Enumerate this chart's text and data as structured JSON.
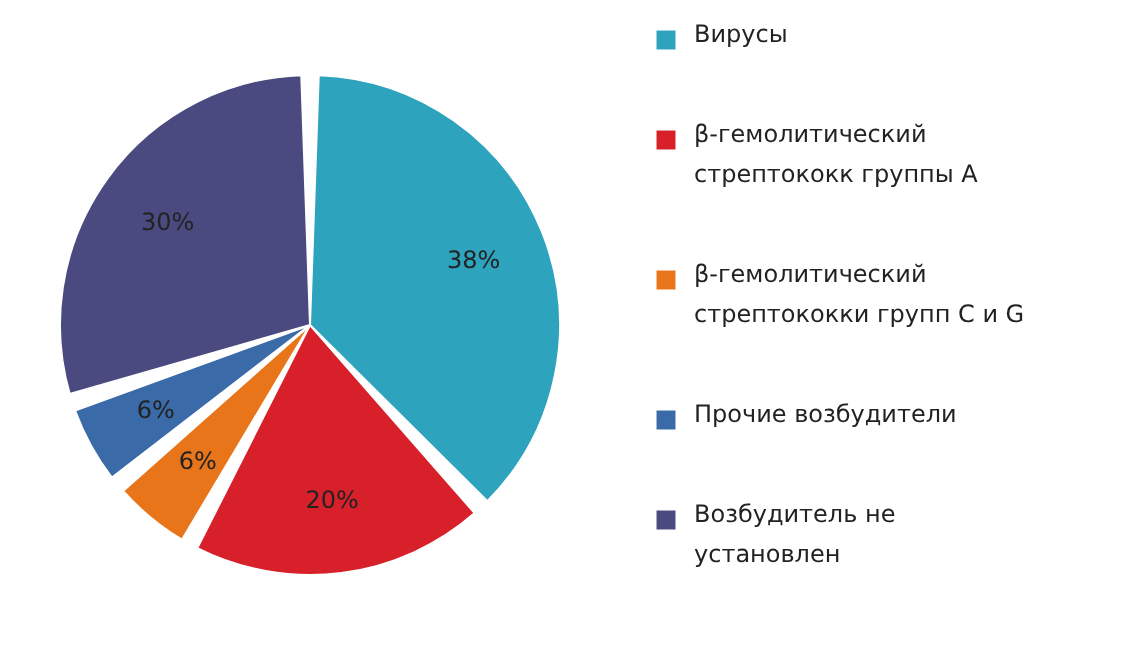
{
  "chart_data": {
    "type": "pie",
    "categories": [
      "Вирусы",
      "β-гемолитический стрептококк группы А",
      "β-гемолитический стрептококки групп C и G",
      "Прочие возбудители",
      "Возбудитель не установлен"
    ],
    "values": [
      38,
      20,
      6,
      6,
      30
    ],
    "colors": [
      "#2ea3bd",
      "#d7202a",
      "#e8751a",
      "#3a6aa8",
      "#4a4a80"
    ],
    "value_labels": [
      "38%",
      "20%",
      "6%",
      "6%",
      "30%"
    ],
    "legend": "right"
  }
}
